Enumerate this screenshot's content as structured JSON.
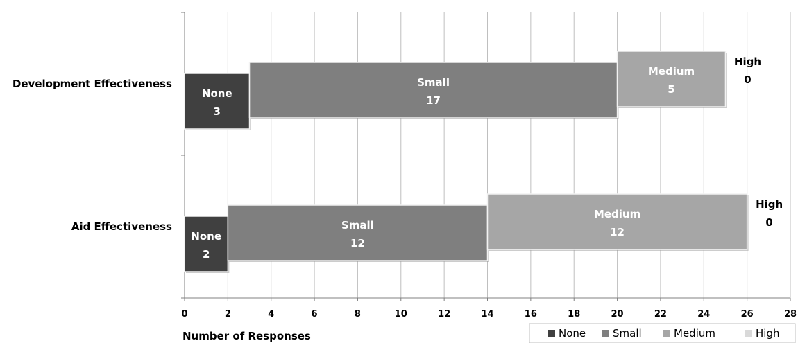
{
  "chart_data": {
    "type": "bar",
    "orientation": "horizontal",
    "stacked": true,
    "categories": [
      "Development Effectiveness",
      "Aid Effectiveness"
    ],
    "series": [
      {
        "name": "None",
        "values": [
          3,
          2
        ],
        "color": "#404040"
      },
      {
        "name": "Small",
        "values": [
          17,
          12
        ],
        "color": "#7f7f7f"
      },
      {
        "name": "Medium",
        "values": [
          5,
          12
        ],
        "color": "#a6a6a6"
      },
      {
        "name": "High",
        "values": [
          0,
          0
        ],
        "color": "#d9d9d9"
      }
    ],
    "xlabel": "Number of Responses",
    "ylabel": "",
    "xlim": [
      0,
      28
    ],
    "x_ticks": [
      "0",
      "2",
      "4",
      "6",
      "8",
      "10",
      "12",
      "14",
      "16",
      "18",
      "20",
      "22",
      "24",
      "26",
      "28"
    ],
    "grid": "vertical",
    "legend_position": "bottom-right",
    "data_label_text_color": "#ffffff",
    "high_label_text_color": "#000000"
  }
}
